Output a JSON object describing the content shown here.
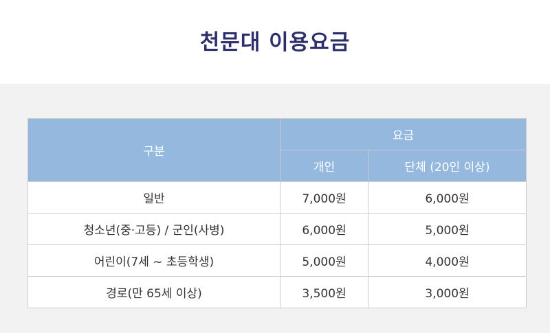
{
  "title": "천문대 이용요금",
  "table": {
    "col_category": "구분",
    "col_fee": "요금",
    "col_individual": "개인",
    "col_group": "단체 (20인 이상)",
    "rows": [
      {
        "category": "일반",
        "individual": "7,000원",
        "group": "6,000원"
      },
      {
        "category": "청소년(중·고등) / 군인(사병)",
        "individual": "6,000원",
        "group": "5,000원"
      },
      {
        "category": "어린이(7세 ~ 초등학생)",
        "individual": "5,000원",
        "group": "4,000원"
      },
      {
        "category": "경로(만 65세 이상)",
        "individual": "3,500원",
        "group": "3,000원"
      }
    ]
  },
  "colors": {
    "title": "#2c2f6b",
    "header_bg": "#95b8de",
    "page_bg": "#f2f2f2"
  }
}
